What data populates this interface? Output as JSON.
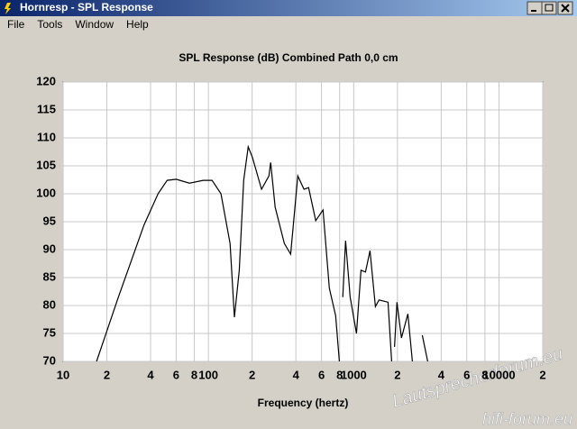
{
  "window": {
    "title": "Hornresp - SPL Response",
    "menu": [
      "File",
      "Tools",
      "Window",
      "Help"
    ]
  },
  "watermark": [
    "Lautsprecherforum.eu",
    "hifi-forum.eu"
  ],
  "chart_data": {
    "type": "line",
    "title": "SPL Response (dB)   Combined   Path 0,0 cm",
    "x_label": "Frequency (hertz)",
    "x_log": true,
    "grid": true,
    "xlim": [
      10,
      20000
    ],
    "ylim": [
      70,
      120
    ],
    "xticks": [
      10,
      {
        "value": 20,
        "label": "2"
      },
      {
        "value": 40,
        "label": "4"
      },
      {
        "value": 60,
        "label": "6"
      },
      {
        "value": 80,
        "label": "8"
      },
      100,
      {
        "value": 200,
        "label": "2"
      },
      {
        "value": 400,
        "label": "4"
      },
      {
        "value": 600,
        "label": "6"
      },
      {
        "value": 800,
        "label": "8"
      },
      1000,
      {
        "value": 2000,
        "label": "2"
      },
      {
        "value": 4000,
        "label": "4"
      },
      {
        "value": 6000,
        "label": "6"
      },
      {
        "value": 8000,
        "label": "8"
      },
      10000,
      {
        "value": 20000,
        "label": "2"
      }
    ],
    "yticks": [
      70,
      75,
      80,
      85,
      90,
      95,
      100,
      105,
      110,
      115,
      120
    ],
    "x": [
      17,
      24,
      36,
      45,
      52,
      60,
      74,
      92,
      106,
      122,
      141,
      151,
      163,
      175,
      188,
      201,
      232,
      261,
      268,
      288,
      333,
      368,
      412,
      455,
      489,
      548,
      615,
      680,
      751,
      796,
      800,
      841,
      879,
      945,
      1045,
      1122,
      1206,
      1295,
      1410,
      1494,
      1722,
      1824,
      1830,
      1910,
      1986,
      2133,
      2360,
      2535,
      2600,
      2966,
      3230
    ],
    "series": [
      {
        "name": "Combined",
        "color": "#000000",
        "values": [
          70,
          81.5,
          94.4,
          100,
          102.4,
          102.6,
          101.9,
          102.4,
          102.4,
          100,
          91.1,
          77.9,
          86.3,
          102.4,
          108.4,
          106.5,
          100.8,
          103.2,
          105.6,
          97.6,
          91.1,
          89.2,
          103.2,
          100.8,
          101.1,
          95.2,
          97.1,
          83.1,
          78.2,
          70,
          null,
          81.5,
          91.6,
          81.5,
          75,
          86.3,
          86,
          89.8,
          79.8,
          81,
          80.6,
          70,
          null,
          72.6,
          80.6,
          74.2,
          78.5,
          70,
          null,
          74.7,
          70
        ]
      }
    ]
  }
}
